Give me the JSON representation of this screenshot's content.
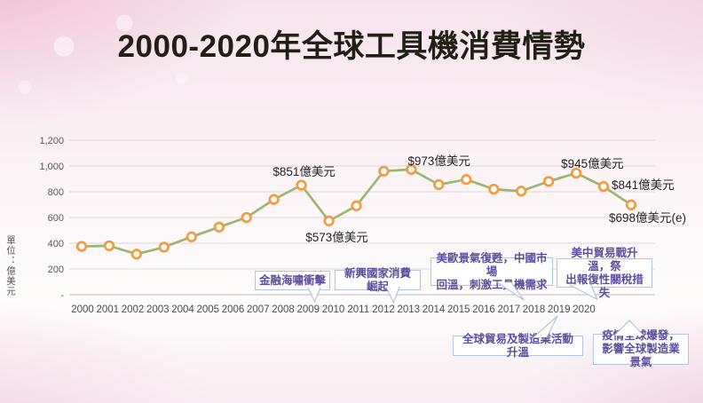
{
  "title": "2000-2020年全球工具機消費情勢",
  "y_axis_unit": "單位：億美元",
  "chart_data": {
    "type": "line",
    "title": "2000-2020年全球工具機消費情勢",
    "ylabel": "單位：億美元",
    "categories": [
      "2000",
      "2001",
      "2002",
      "2003",
      "2004",
      "2005",
      "2006",
      "2007",
      "2008",
      "2009",
      "2010",
      "2011",
      "2012",
      "2013",
      "2014",
      "2015",
      "2016",
      "2017",
      "2018",
      "2019",
      "2020"
    ],
    "values": [
      375,
      380,
      315,
      370,
      450,
      525,
      600,
      740,
      851,
      573,
      690,
      960,
      973,
      855,
      895,
      820,
      805,
      880,
      945,
      841,
      698
    ],
    "ylim": [
      0,
      1200
    ],
    "y_ticks": [
      "1,200",
      "1,000",
      "800",
      "600",
      "400",
      "200",
      "-"
    ],
    "y_tick_values": [
      1200,
      1000,
      800,
      600,
      400,
      200,
      0
    ],
    "grid": true,
    "line_color": "#9cb671",
    "marker_color": "#f49a3f",
    "gridline_color": "#d9d9d9",
    "axis_line_color": "#bdbdbd",
    "tick_text_color": "#595959",
    "annotation_text_color": "#262626",
    "callout_border_color": "#afc6df",
    "callout_text_color": "#5e4f9d",
    "annotations": [
      {
        "year": "2008",
        "text": "$851億美元",
        "placement": "above"
      },
      {
        "year": "2009",
        "text": "$573億美元",
        "placement": "below"
      },
      {
        "year": "2012",
        "text": "$973億美元",
        "placement": "above-right"
      },
      {
        "year": "2018",
        "text": "$945億美元",
        "placement": "above-right"
      },
      {
        "year": "2019",
        "text": "$841億美元",
        "placement": "right"
      },
      {
        "year": "2020",
        "text": "$698億美元(e)",
        "placement": "below-left"
      }
    ],
    "callouts": [
      {
        "target_year": "2009",
        "lines": [
          "金融海嘯衝擊"
        ]
      },
      {
        "target_year": "2012",
        "lines": [
          "新興國家消費崛起"
        ]
      },
      {
        "target_year": "2018",
        "lines": [
          "美歐景氣復甦，中國市場",
          "回溫，刺激工具機需求"
        ]
      },
      {
        "target_year": "2019",
        "lines": [
          "美中貿易戰升溫，祭",
          "出報復性關稅措失"
        ]
      },
      {
        "target_year": "2018",
        "lines": [
          "全球貿易及製造業活動升溫"
        ]
      },
      {
        "target_year": "2020",
        "lines": [
          "疫情全球爆發，",
          "影響全球製造業景氣"
        ]
      }
    ]
  }
}
